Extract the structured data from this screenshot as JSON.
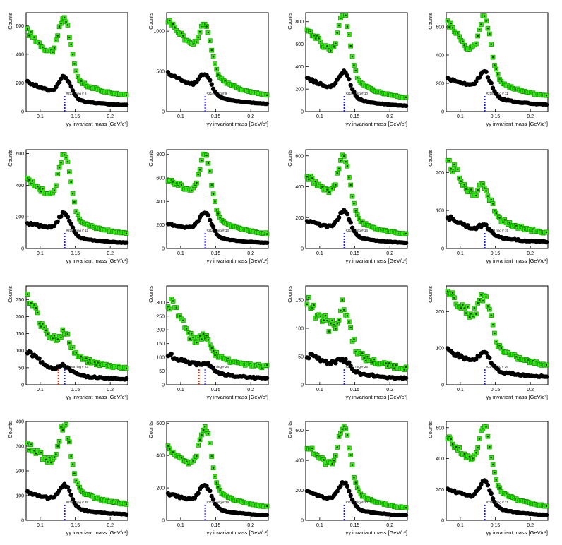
{
  "colors": {
    "upper": "#33ee00",
    "upper_marker": "#111111",
    "lower": "#000000",
    "marker_blue": "#1a1aff",
    "marker_red": "#ff2200"
  },
  "common": {
    "xlabel": "γγ invariant mass [GeV/c²]",
    "ylabel": "Counts",
    "xlim": [
      0.08,
      0.225
    ],
    "xticks": [
      0.1,
      0.15,
      0.2
    ],
    "xtick_labels": [
      "0.1",
      "0.15",
      "0.2"
    ]
  },
  "chart_data": [
    {
      "type": "scatter",
      "ylim": [
        0,
        690
      ],
      "yticks": [
        0,
        200,
        400,
        600
      ],
      "peak_upper": 660,
      "peak_lower": 245,
      "left_upper": 570,
      "left_lower": 210,
      "end_upper": 95,
      "end_lower": 40,
      "dip_upper": 400,
      "dip_lower": 140,
      "label": "#2132 ring # 8",
      "red_marker": false,
      "noise": 0.04
    },
    {
      "type": "scatter",
      "ylim": [
        0,
        1230
      ],
      "yticks": [
        0,
        500,
        1000
      ],
      "peak_upper": 1090,
      "peak_lower": 470,
      "left_upper": 1160,
      "left_lower": 490,
      "end_upper": 160,
      "end_lower": 80,
      "dip_upper": 820,
      "dip_lower": 330,
      "label": "#2145 ring # 9",
      "red_marker": false,
      "noise": 0.03
    },
    {
      "type": "scatter",
      "ylim": [
        0,
        880
      ],
      "yticks": [
        0,
        200,
        400,
        600,
        800
      ],
      "peak_upper": 860,
      "peak_lower": 350,
      "left_upper": 750,
      "left_lower": 300,
      "end_upper": 90,
      "end_lower": 40,
      "dip_upper": 530,
      "dip_lower": 210,
      "label": "#2153 ring # 10",
      "red_marker": false,
      "noise": 0.04
    },
    {
      "type": "scatter",
      "ylim": [
        0,
        700
      ],
      "yticks": [
        0,
        200,
        400,
        600
      ],
      "peak_upper": 680,
      "peak_lower": 280,
      "left_upper": 650,
      "left_lower": 240,
      "end_upper": 90,
      "end_lower": 40,
      "dip_upper": 420,
      "dip_lower": 180,
      "label": "#2159 ring # 11",
      "red_marker": false,
      "noise": 0.04
    },
    {
      "type": "scatter",
      "ylim": [
        0,
        625
      ],
      "yticks": [
        0,
        200,
        400,
        600
      ],
      "peak_upper": 595,
      "peak_lower": 225,
      "left_upper": 440,
      "left_lower": 160,
      "end_upper": 80,
      "end_lower": 30,
      "dip_upper": 330,
      "dip_lower": 130,
      "label": "#2165 ring # 12",
      "red_marker": false,
      "noise": 0.04
    },
    {
      "type": "scatter",
      "ylim": [
        0,
        840
      ],
      "yticks": [
        0,
        200,
        400,
        600,
        800
      ],
      "peak_upper": 800,
      "peak_lower": 310,
      "left_upper": 600,
      "left_lower": 210,
      "end_upper": 100,
      "end_lower": 40,
      "dip_upper": 480,
      "dip_lower": 170,
      "label": "#2166 ring # 13",
      "red_marker": false,
      "noise": 0.04
    },
    {
      "type": "scatter",
      "ylim": [
        0,
        640
      ],
      "yticks": [
        0,
        200,
        400,
        600
      ],
      "peak_upper": 600,
      "peak_lower": 240,
      "left_upper": 480,
      "left_lower": 180,
      "end_upper": 75,
      "end_lower": 30,
      "dip_upper": 350,
      "dip_lower": 135,
      "label": "#2167 ring # 14",
      "red_marker": false,
      "noise": 0.04
    },
    {
      "type": "scatter",
      "ylim": [
        0,
        260
      ],
      "yticks": [
        0,
        100,
        200
      ],
      "peak_upper": 160,
      "peak_lower": 60,
      "left_upper": 235,
      "left_lower": 85,
      "end_upper": 35,
      "end_lower": 15,
      "dip_upper": 150,
      "dip_lower": 55,
      "label": "#2153 ring # 15",
      "red_marker": false,
      "noise": 0.08
    },
    {
      "type": "scatter",
      "ylim": [
        0,
        290
      ],
      "yticks": [
        0,
        50,
        100,
        150,
        200,
        250
      ],
      "peak_upper": 150,
      "peak_lower": 55,
      "left_upper": 260,
      "left_lower": 100,
      "end_upper": 45,
      "end_lower": 15,
      "dip_upper": 140,
      "dip_lower": 50,
      "label": "#2165 ring # 23",
      "red_marker": true,
      "noise": 0.09
    },
    {
      "type": "scatter",
      "ylim": [
        0,
        360
      ],
      "yticks": [
        0,
        50,
        100,
        150,
        200,
        250,
        300
      ],
      "peak_upper": 170,
      "peak_lower": 80,
      "left_upper": 320,
      "left_lower": 115,
      "end_upper": 60,
      "end_lower": 20,
      "dip_upper": 170,
      "dip_lower": 75,
      "label": "#2166 ring # 24",
      "red_marker": true,
      "noise": 0.09
    },
    {
      "type": "scatter",
      "ylim": [
        0,
        175
      ],
      "yticks": [
        0,
        50,
        100,
        150
      ],
      "peak_upper": 135,
      "peak_lower": 45,
      "left_upper": 155,
      "left_lower": 55,
      "end_upper": 25,
      "end_lower": 10,
      "dip_upper": 100,
      "dip_lower": 38,
      "label": "#2167 ring # 25",
      "red_marker": false,
      "noise": 0.12
    },
    {
      "type": "scatter",
      "ylim": [
        0,
        270
      ],
      "yticks": [
        0,
        100,
        200
      ],
      "peak_upper": 245,
      "peak_lower": 85,
      "left_upper": 260,
      "left_lower": 95,
      "end_upper": 45,
      "end_lower": 20,
      "dip_upper": 190,
      "dip_lower": 65,
      "label": "#2172 ring # 26",
      "red_marker": false,
      "noise": 0.07
    },
    {
      "type": "scatter",
      "ylim": [
        0,
        400
      ],
      "yticks": [
        0,
        100,
        200,
        300,
        400
      ],
      "peak_upper": 385,
      "peak_lower": 145,
      "left_upper": 310,
      "left_lower": 115,
      "end_upper": 55,
      "end_lower": 20,
      "dip_upper": 230,
      "dip_lower": 85,
      "label": "#2181 ring # 28",
      "red_marker": false,
      "noise": 0.05
    },
    {
      "type": "scatter",
      "ylim": [
        0,
        610
      ],
      "yticks": [
        0,
        200,
        400,
        600
      ],
      "peak_upper": 580,
      "peak_lower": 220,
      "left_upper": 450,
      "left_lower": 165,
      "end_upper": 65,
      "end_lower": 25,
      "dip_upper": 330,
      "dip_lower": 125,
      "label": "#2183 ring # 29",
      "red_marker": false,
      "noise": 0.04
    },
    {
      "type": "scatter",
      "ylim": [
        0,
        660
      ],
      "yticks": [
        0,
        200,
        400,
        600
      ],
      "peak_upper": 630,
      "peak_lower": 255,
      "left_upper": 500,
      "left_lower": 195,
      "end_upper": 60,
      "end_lower": 25,
      "dip_upper": 360,
      "dip_lower": 140,
      "label": "#2184 ring # 30",
      "red_marker": false,
      "noise": 0.04
    },
    {
      "type": "scatter",
      "ylim": [
        0,
        640
      ],
      "yticks": [
        0,
        200,
        400,
        600
      ],
      "peak_upper": 610,
      "peak_lower": 250,
      "left_upper": 540,
      "left_lower": 205,
      "end_upper": 70,
      "end_lower": 25,
      "dip_upper": 380,
      "dip_lower": 150,
      "label": "#2187 ring # 31",
      "red_marker": false,
      "noise": 0.04
    }
  ]
}
